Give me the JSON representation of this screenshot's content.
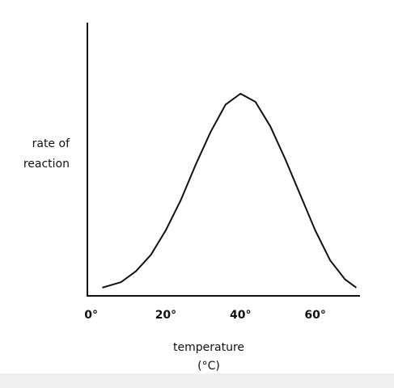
{
  "chart_data": {
    "type": "line",
    "y_label": [
      "rate of",
      "reaction"
    ],
    "x_label": [
      "temperature",
      "(°C)"
    ],
    "x": [
      3,
      8,
      12,
      16,
      20,
      24,
      28,
      32,
      36,
      40,
      44,
      48,
      52,
      56,
      60,
      64,
      68,
      71
    ],
    "series": [
      {
        "color": "#111111",
        "values": [
          3,
          5,
          9,
          15,
          24,
          35,
          48,
          60,
          70,
          74,
          71,
          62,
          50,
          37,
          24,
          13,
          6,
          3
        ]
      }
    ],
    "xlim": [
      -1,
      72
    ],
    "xticks": [
      {
        "value": 0,
        "label": "0°"
      },
      {
        "value": 20,
        "label": "20°"
      },
      {
        "value": 40,
        "label": "40°"
      },
      {
        "value": 60,
        "label": "60°"
      }
    ],
    "ylim": [
      0,
      100
    ]
  }
}
